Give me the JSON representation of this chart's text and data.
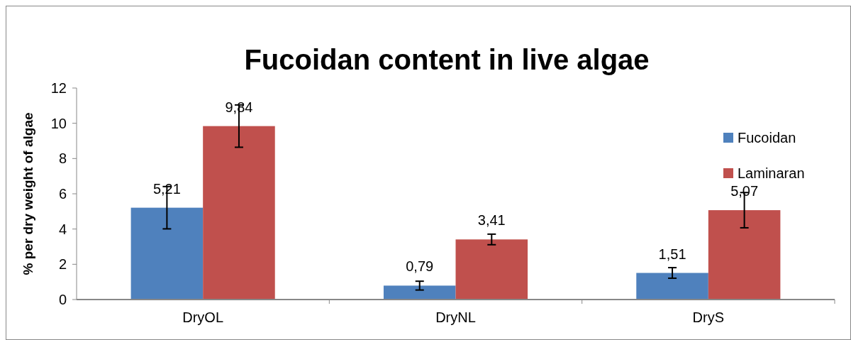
{
  "chart_data": {
    "type": "bar",
    "title": "Fucoidan content in live algae",
    "ylabel": "% per dry weight of algae",
    "categories": [
      "DryOL",
      "DryNL",
      "DryS"
    ],
    "series": [
      {
        "name": "Fucoidan",
        "color": "#4f81bd",
        "values": [
          5.21,
          0.79,
          1.51
        ],
        "errors": [
          1.2,
          0.25,
          0.3
        ],
        "value_labels": [
          "5,21",
          "0,79",
          "1,51"
        ]
      },
      {
        "name": "Laminaran",
        "color": "#c0504d",
        "values": [
          9.84,
          3.41,
          5.07
        ],
        "errors": [
          1.2,
          0.3,
          1.0
        ],
        "value_labels": [
          "9,84",
          "3,41",
          "5,07"
        ]
      }
    ],
    "ylim": [
      0,
      12
    ],
    "yticks": [
      0,
      2,
      4,
      6,
      8,
      10,
      12
    ],
    "grid": false,
    "legend": "top right"
  }
}
